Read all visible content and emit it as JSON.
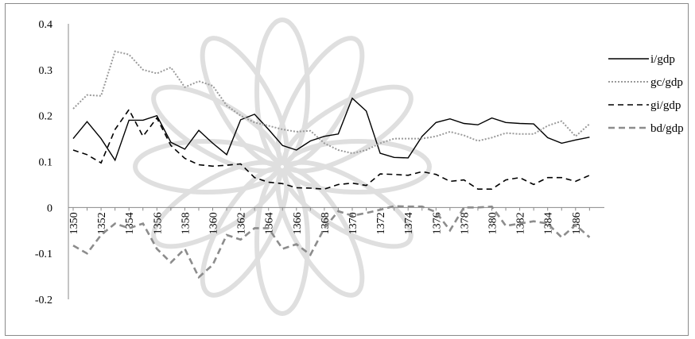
{
  "chart_data": {
    "type": "line",
    "title": "",
    "xlabel": "",
    "ylabel": "",
    "ylim": [
      -0.2,
      0.4
    ],
    "yticks": [
      0.4,
      0.3,
      0.2,
      0.1,
      0,
      -0.1,
      -0.2
    ],
    "ytick_labels": [
      "0.4",
      "0.3",
      "0.2",
      "0.1",
      "0",
      "-0.1",
      "-0.2"
    ],
    "x": [
      1350,
      1351,
      1352,
      1353,
      1354,
      1355,
      1356,
      1357,
      1358,
      1359,
      1360,
      1361,
      1362,
      1363,
      1364,
      1365,
      1366,
      1367,
      1368,
      1369,
      1370,
      1371,
      1372,
      1373,
      1374,
      1375,
      1376,
      1377,
      1378,
      1379,
      1380,
      1381,
      1382,
      1383,
      1384,
      1385,
      1386,
      1387
    ],
    "xtick_labels": [
      "1350",
      "1352",
      "1354",
      "1356",
      "1358",
      "1360",
      "1362",
      "1364",
      "1366",
      "1368",
      "1370",
      "1372",
      "1374",
      "1376",
      "1378",
      "1380",
      "1382",
      "1384",
      "1386"
    ],
    "legend": "right",
    "grid": false,
    "series": [
      {
        "name": "i/gdp",
        "style": "solid",
        "color": "#000000",
        "values": [
          0.15,
          0.187,
          0.15,
          0.103,
          0.19,
          0.19,
          0.2,
          0.142,
          0.127,
          0.168,
          0.14,
          0.115,
          0.191,
          0.203,
          0.17,
          0.135,
          0.125,
          0.145,
          0.155,
          0.16,
          0.238,
          0.21,
          0.118,
          0.109,
          0.108,
          0.155,
          0.185,
          0.193,
          0.183,
          0.18,
          0.195,
          0.185,
          0.183,
          0.182,
          0.152,
          0.14,
          0.147,
          0.153
        ]
      },
      {
        "name": "gc/gdp",
        "style": "dotted",
        "color": "#9a9a9a",
        "values": [
          0.215,
          0.245,
          0.243,
          0.34,
          0.333,
          0.3,
          0.292,
          0.305,
          0.262,
          0.275,
          0.265,
          0.222,
          0.2,
          0.185,
          0.178,
          0.17,
          0.165,
          0.167,
          0.14,
          0.125,
          0.118,
          0.125,
          0.14,
          0.15,
          0.15,
          0.15,
          0.155,
          0.165,
          0.157,
          0.145,
          0.152,
          0.162,
          0.16,
          0.16,
          0.178,
          0.188,
          0.155,
          0.182
        ]
      },
      {
        "name": "gi/gdp",
        "style": "dashed",
        "color": "#000000",
        "values": [
          0.125,
          0.115,
          0.097,
          0.17,
          0.213,
          0.155,
          0.195,
          0.135,
          0.107,
          0.093,
          0.09,
          0.092,
          0.095,
          0.065,
          0.055,
          0.052,
          0.043,
          0.042,
          0.04,
          0.05,
          0.053,
          0.048,
          0.073,
          0.072,
          0.07,
          0.078,
          0.072,
          0.057,
          0.06,
          0.04,
          0.04,
          0.06,
          0.065,
          0.05,
          0.065,
          0.065,
          0.057,
          0.07
        ]
      },
      {
        "name": "bd/gdp",
        "style": "dashed-thick",
        "color": "#8c8c8c",
        "values": [
          -0.083,
          -0.1,
          -0.06,
          -0.035,
          -0.045,
          -0.035,
          -0.09,
          -0.12,
          -0.09,
          -0.152,
          -0.125,
          -0.06,
          -0.07,
          -0.045,
          -0.045,
          -0.09,
          -0.08,
          -0.103,
          -0.045,
          -0.008,
          -0.018,
          -0.012,
          -0.005,
          0.003,
          0.002,
          0.002,
          -0.01,
          -0.05,
          0.0,
          0.0,
          0.002,
          -0.04,
          -0.035,
          -0.03,
          -0.035,
          -0.065,
          -0.038,
          -0.065
        ]
      }
    ]
  }
}
